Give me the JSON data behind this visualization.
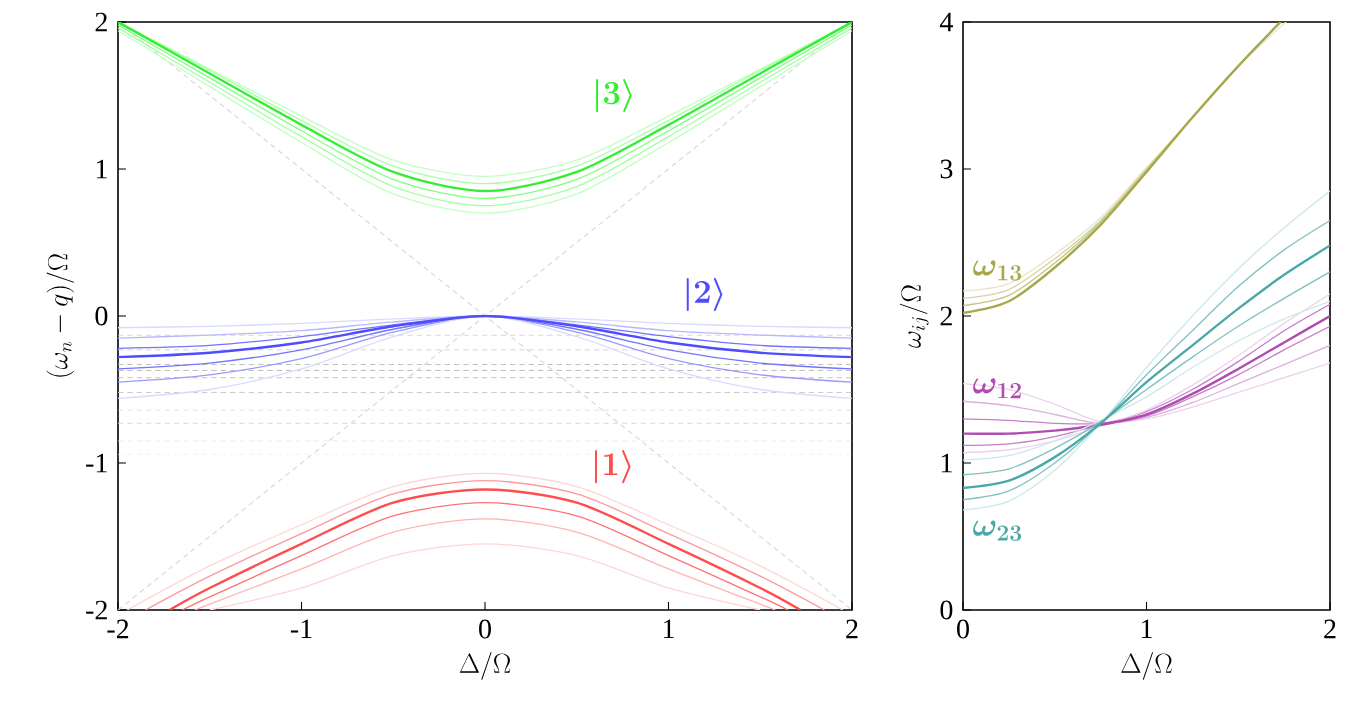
{
  "chart_data": [
    {
      "type": "line",
      "xlabel": "\\Delta/\\Omega",
      "ylabel": "(\\omega_n-q)/\\Omega",
      "xlim": [
        -2,
        2
      ],
      "ylim": [
        -2,
        2
      ],
      "xticks": [
        -2,
        -1,
        0,
        1,
        2
      ],
      "yticks": [
        -2,
        -1,
        0,
        1,
        2
      ],
      "x": [
        -2,
        -1.5,
        -1,
        -0.5,
        0,
        0.5,
        1,
        1.5,
        2
      ],
      "ref_lines": [
        {
          "axis": "y",
          "value": -0.13,
          "color": "#cccccc",
          "line_style": "dashed"
        },
        {
          "axis": "y",
          "value": -0.23,
          "color": "#c4c4c4",
          "line_style": "dashed"
        },
        {
          "axis": "y",
          "value": -0.33,
          "color": "#bbbbbb",
          "line_style": "dashed"
        },
        {
          "axis": "y",
          "value": -0.37,
          "color": "#b4b4b4",
          "line_style": "dashed"
        },
        {
          "axis": "y",
          "value": -0.42,
          "color": "#bbbbbb",
          "line_style": "dashed"
        },
        {
          "axis": "y",
          "value": -0.52,
          "color": "#c4c4c4",
          "line_style": "dashed"
        },
        {
          "axis": "y",
          "value": -0.64,
          "color": "#cccccc",
          "line_style": "dashed"
        },
        {
          "axis": "y",
          "value": -0.73,
          "color": "#d8d8d8",
          "line_style": "dashed"
        },
        {
          "axis": "y",
          "value": -0.85,
          "color": "#e4e4e4",
          "line_style": "dashed"
        },
        {
          "axis": "y",
          "value": -0.94,
          "color": "#eeeeee",
          "line_style": "dashed"
        }
      ],
      "series": [
        {
          "type": "line",
          "line_style": "dashed",
          "color": "#dddddd",
          "x": [
            -2,
            2
          ],
          "values": [
            -2,
            2
          ]
        },
        {
          "type": "line",
          "line_style": "dashed",
          "color": "#dddddd",
          "x": [
            -2,
            2
          ],
          "values": [
            2,
            -2
          ]
        },
        {
          "color": "#c2ffc2",
          "values": [
            2.0,
            1.68,
            1.36,
            1.06,
            0.95,
            1.06,
            1.36,
            1.68,
            2.0
          ]
        },
        {
          "color": "#a3ffa3",
          "values": [
            2.0,
            1.67,
            1.33,
            1.02,
            0.9,
            1.02,
            1.33,
            1.67,
            2.0
          ]
        },
        {
          "color": "#7fff7f",
          "values": [
            1.98,
            1.62,
            1.26,
            0.93,
            0.8,
            0.93,
            1.26,
            1.62,
            1.98
          ]
        },
        {
          "color": "#a3ffa3",
          "values": [
            1.96,
            1.59,
            1.22,
            0.88,
            0.75,
            0.88,
            1.22,
            1.59,
            1.96
          ]
        },
        {
          "color": "#c2ffc2",
          "values": [
            1.94,
            1.56,
            1.18,
            0.83,
            0.7,
            0.83,
            1.18,
            1.56,
            1.94
          ]
        },
        {
          "color": "#33ee33",
          "name": "|3\\rangle",
          "values": [
            2.0,
            1.65,
            1.3,
            0.98,
            0.85,
            0.98,
            1.3,
            1.65,
            2.0
          ]
        },
        {
          "color": "#dadaff",
          "values": [
            -0.08,
            -0.07,
            -0.05,
            -0.02,
            0,
            -0.02,
            -0.05,
            -0.07,
            -0.08
          ]
        },
        {
          "color": "#b8b8ff",
          "values": [
            -0.15,
            -0.13,
            -0.1,
            -0.04,
            0,
            -0.04,
            -0.1,
            -0.13,
            -0.15
          ]
        },
        {
          "color": "#7373ff",
          "values": [
            -0.22,
            -0.2,
            -0.14,
            -0.06,
            0,
            -0.06,
            -0.14,
            -0.2,
            -0.22
          ]
        },
        {
          "color": "#7373ff",
          "values": [
            -0.36,
            -0.32,
            -0.23,
            -0.09,
            0,
            -0.09,
            -0.23,
            -0.32,
            -0.36
          ]
        },
        {
          "color": "#9999ff",
          "values": [
            -0.45,
            -0.4,
            -0.29,
            -0.11,
            0,
            -0.11,
            -0.29,
            -0.4,
            -0.45
          ]
        },
        {
          "color": "#dadaff",
          "values": [
            -0.56,
            -0.5,
            -0.36,
            -0.14,
            0,
            -0.14,
            -0.36,
            -0.5,
            -0.56
          ]
        },
        {
          "color": "#4d4dff",
          "name": "|2\\rangle",
          "values": [
            -0.28,
            -0.25,
            -0.18,
            -0.07,
            0,
            -0.07,
            -0.18,
            -0.25,
            -0.28
          ]
        },
        {
          "color": "#ffd6d6",
          "x": [
            -1.95,
            -1.5,
            -1,
            -0.5,
            0,
            0.5,
            1,
            1.5,
            1.95
          ],
          "values": [
            -2,
            -1.7,
            -1.42,
            -1.16,
            -1.07,
            -1.16,
            -1.42,
            -1.7,
            -2
          ]
        },
        {
          "color": "#ff9999",
          "x": [
            -1.85,
            -1.5,
            -1,
            -0.5,
            0,
            0.5,
            1,
            1.5,
            1.85
          ],
          "values": [
            -2,
            -1.77,
            -1.48,
            -1.21,
            -1.12,
            -1.21,
            -1.48,
            -1.77,
            -2
          ]
        },
        {
          "color": "#ff7373",
          "x": [
            -1.65,
            -1.5,
            -1,
            -0.5,
            0,
            0.5,
            1,
            1.5,
            1.65
          ],
          "values": [
            -2,
            -1.91,
            -1.63,
            -1.36,
            -1.27,
            -1.36,
            -1.63,
            -1.91,
            -2
          ]
        },
        {
          "color": "#ffb3b3",
          "x": [
            -1.58,
            -1.5,
            -1,
            -0.5,
            0,
            0.5,
            1,
            1.5,
            1.58
          ],
          "values": [
            -2,
            -1.96,
            -1.72,
            -1.47,
            -1.38,
            -1.47,
            -1.72,
            -1.96,
            -2
          ]
        },
        {
          "color": "#ffd6d6",
          "x": [
            -1.5,
            -1,
            -0.5,
            0,
            0.5,
            1,
            1.5
          ],
          "values": [
            -2,
            -1.85,
            -1.63,
            -1.55,
            -1.63,
            -1.85,
            -2
          ]
        },
        {
          "color": "#ff4d4d",
          "name": "|1\\rangle",
          "x": [
            -1.72,
            -1.5,
            -1,
            -0.5,
            0,
            0.5,
            1,
            1.5,
            1.72
          ],
          "values": [
            -2,
            -1.85,
            -1.55,
            -1.27,
            -1.18,
            -1.27,
            -1.55,
            -1.85,
            -2
          ]
        }
      ]
    },
    {
      "type": "line",
      "xlabel": "\\Delta/\\Omega",
      "ylabel": "\\omega_{ij}/\\Omega",
      "xlim": [
        0,
        2
      ],
      "ylim": [
        0,
        4
      ],
      "xticks": [
        0,
        1,
        2
      ],
      "yticks": [
        0,
        1,
        2,
        3,
        4
      ],
      "x": [
        0,
        0.25,
        0.5,
        0.75,
        1,
        1.25,
        1.5,
        1.75,
        2
      ],
      "series": [
        {
          "color": "#e6e6c6",
          "x": [
            0,
            0.25,
            0.5,
            0.75,
            1,
            1.25,
            1.5,
            1.76
          ],
          "values": [
            2.17,
            2.22,
            2.42,
            2.67,
            3.01,
            3.35,
            3.7,
            4.0
          ]
        },
        {
          "color": "#d4d4a4",
          "x": [
            0,
            0.25,
            0.5,
            0.75,
            1,
            1.25,
            1.5,
            1.73
          ],
          "values": [
            2.12,
            2.18,
            2.39,
            2.65,
            3.0,
            3.35,
            3.7,
            4.0
          ]
        },
        {
          "color": "#c4c484",
          "x": [
            0,
            0.25,
            0.5,
            0.75,
            1,
            1.25,
            1.5,
            1.73
          ],
          "values": [
            2.07,
            2.14,
            2.36,
            2.64,
            2.99,
            3.35,
            3.7,
            4.0
          ]
        },
        {
          "color": "#a8a84a",
          "name": "\\omega_{13}",
          "x": [
            0,
            0.25,
            0.5,
            0.75,
            1,
            1.25,
            1.5,
            1.73
          ],
          "values": [
            2.02,
            2.1,
            2.33,
            2.62,
            2.98,
            3.35,
            3.7,
            4.0
          ]
        },
        {
          "color": "#ecd3ec",
          "values": [
            1.54,
            1.5,
            1.4,
            1.28,
            1.3,
            1.38,
            1.48,
            1.58,
            1.68
          ]
        },
        {
          "color": "#dcb0dc",
          "values": [
            1.42,
            1.39,
            1.33,
            1.27,
            1.31,
            1.41,
            1.54,
            1.67,
            1.8
          ]
        },
        {
          "color": "#c97dc9",
          "values": [
            1.3,
            1.29,
            1.27,
            1.27,
            1.32,
            1.45,
            1.6,
            1.77,
            1.93
          ]
        },
        {
          "color": "#c97dc9",
          "values": [
            1.12,
            1.13,
            1.18,
            1.26,
            1.35,
            1.5,
            1.69,
            1.9,
            2.08
          ]
        },
        {
          "color": "#ecd3ec",
          "values": [
            1.07,
            1.09,
            1.15,
            1.25,
            1.36,
            1.53,
            1.73,
            1.95,
            2.15
          ]
        },
        {
          "color": "#b04db0",
          "name": "\\omega_{12}",
          "values": [
            1.2,
            1.2,
            1.22,
            1.26,
            1.33,
            1.47,
            1.64,
            1.82,
            2.0
          ]
        },
        {
          "color": "#cfe8e8",
          "values": [
            1.02,
            1.05,
            1.15,
            1.29,
            1.45,
            1.65,
            1.83,
            1.98,
            2.1
          ]
        },
        {
          "color": "#7fc2c2",
          "values": [
            0.92,
            0.96,
            1.1,
            1.28,
            1.5,
            1.72,
            1.93,
            2.12,
            2.3
          ]
        },
        {
          "color": "#7fc2c2",
          "values": [
            0.75,
            0.81,
            1.0,
            1.27,
            1.6,
            1.9,
            2.2,
            2.45,
            2.65
          ]
        },
        {
          "color": "#cfe8e8",
          "values": [
            0.68,
            0.74,
            0.95,
            1.27,
            1.65,
            2.0,
            2.32,
            2.6,
            2.85
          ]
        },
        {
          "color": "#4aa8a8",
          "name": "\\omega_{23}",
          "values": [
            0.83,
            0.88,
            1.04,
            1.27,
            1.55,
            1.8,
            2.05,
            2.28,
            2.48
          ]
        }
      ]
    }
  ]
}
